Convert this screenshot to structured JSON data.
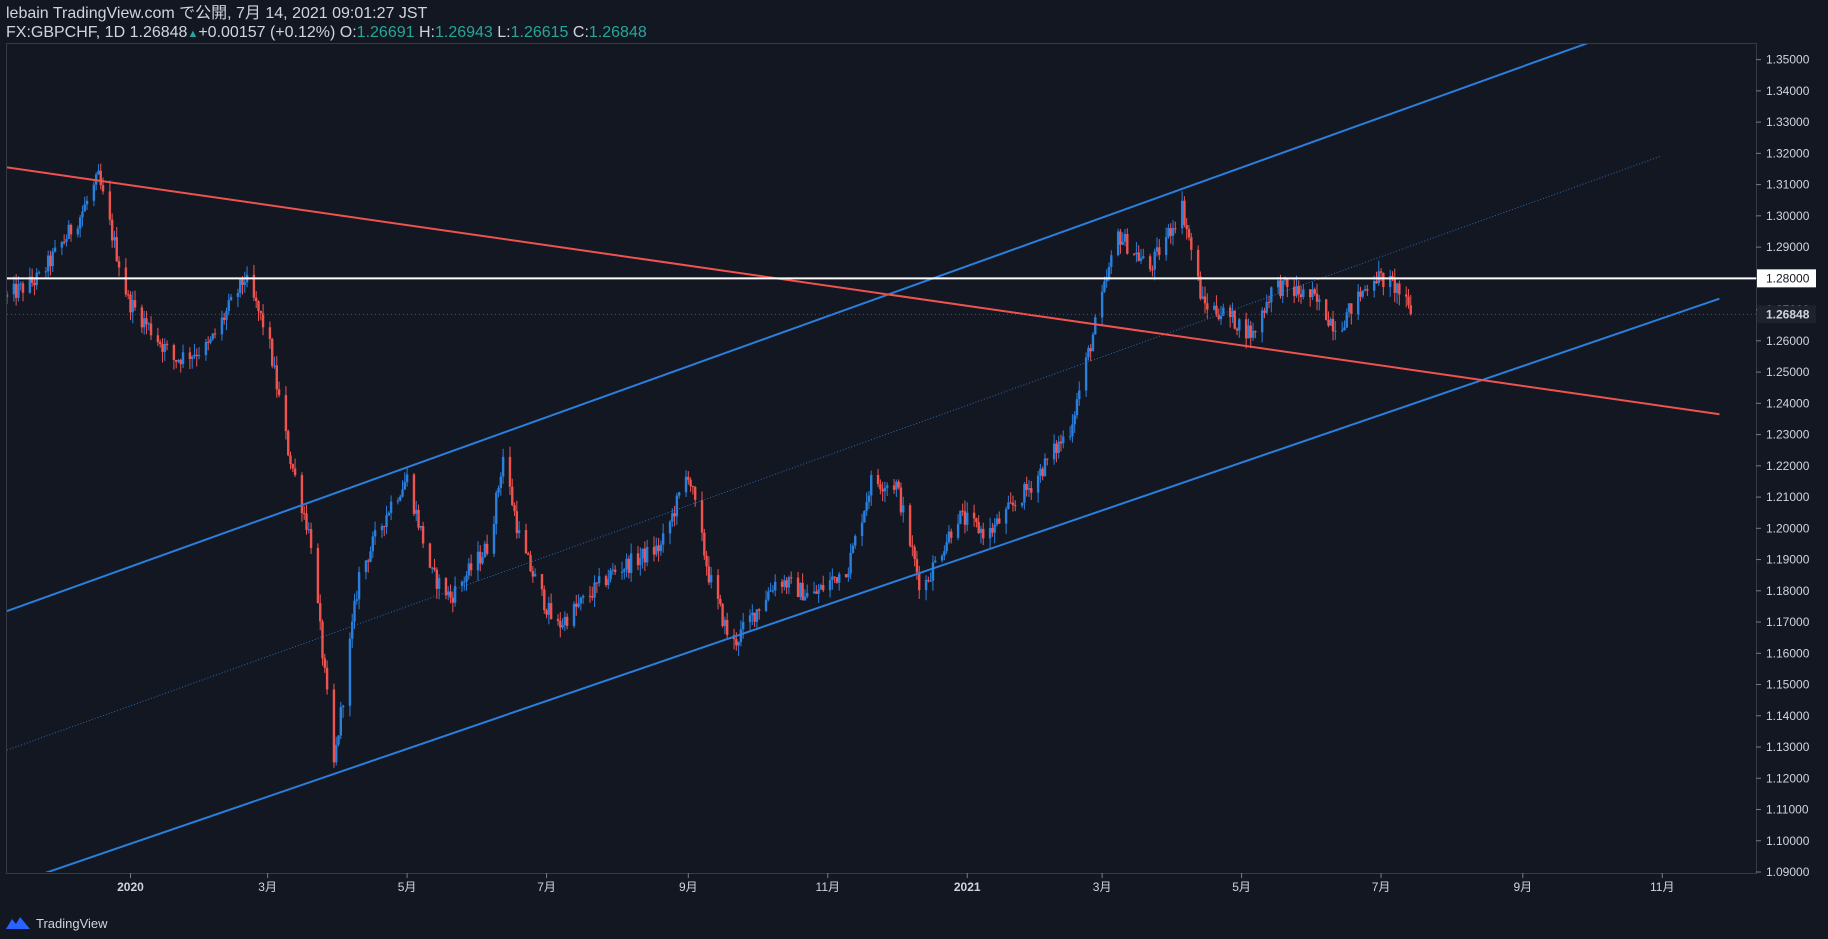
{
  "header": {
    "line1": "lebain TradingView.com で公開, 7月 14, 2021 09:01:27 JST",
    "symbol": "FX:GBPCHF, 1D",
    "last": "1.26848",
    "change": "+0.00157 (+0.12%)",
    "o_label": "O:",
    "o_value": "1.26691",
    "h_label": "H:",
    "h_value": "1.26943",
    "l_label": "L:",
    "l_value": "1.26615",
    "c_label": "C:",
    "c_value": "1.26848"
  },
  "footer": {
    "brand": "TradingView"
  },
  "colors": {
    "background": "#131722",
    "up": "#2a7fdc",
    "down": "#ef5350",
    "channel": "#2962ff",
    "downtrend": "#ef5350",
    "hline": "#ffffff",
    "last_price": "#1e222d"
  },
  "chart_data": {
    "type": "candlestick",
    "symbol": "FX:GBPCHF",
    "interval": "1D",
    "ylim": [
      1.09,
      1.355
    ],
    "y_ticks": [
      "1.09000",
      "1.10000",
      "1.11000",
      "1.12000",
      "1.13000",
      "1.14000",
      "1.15000",
      "1.16000",
      "1.17000",
      "1.18000",
      "1.19000",
      "1.20000",
      "1.21000",
      "1.22000",
      "1.23000",
      "1.24000",
      "1.25000",
      "1.26000",
      "1.27000",
      "1.28000",
      "1.29000",
      "1.30000",
      "1.31000",
      "1.32000",
      "1.33000",
      "1.34000",
      "1.35000"
    ],
    "x_ticks": [
      {
        "label": "2020",
        "date": "2020-01-01",
        "bold": true
      },
      {
        "label": "3月",
        "date": "2020-03-01"
      },
      {
        "label": "5月",
        "date": "2020-05-01"
      },
      {
        "label": "7月",
        "date": "2020-07-01"
      },
      {
        "label": "9月",
        "date": "2020-09-01"
      },
      {
        "label": "11月",
        "date": "2020-11-01"
      },
      {
        "label": "2021",
        "date": "2021-01-01",
        "bold": true
      },
      {
        "label": "3月",
        "date": "2021-03-01"
      },
      {
        "label": "5月",
        "date": "2021-05-01"
      },
      {
        "label": "7月",
        "date": "2021-07-01"
      },
      {
        "label": "9月",
        "date": "2021-09-01"
      },
      {
        "label": "11月",
        "date": "2021-11-01"
      }
    ],
    "xlim": [
      "2019-11-08",
      "2021-12-12"
    ],
    "key_points": [
      {
        "date": "2019-11-08",
        "price": 1.274
      },
      {
        "date": "2019-11-22",
        "price": 1.28
      },
      {
        "date": "2019-12-10",
        "price": 1.3
      },
      {
        "date": "2019-12-18",
        "price": 1.312
      },
      {
        "date": "2019-12-31",
        "price": 1.273
      },
      {
        "date": "2020-01-20",
        "price": 1.254
      },
      {
        "date": "2020-02-04",
        "price": 1.258
      },
      {
        "date": "2020-02-20",
        "price": 1.28
      },
      {
        "date": "2020-03-01",
        "price": 1.262
      },
      {
        "date": "2020-03-10",
        "price": 1.225
      },
      {
        "date": "2020-03-20",
        "price": 1.196
      },
      {
        "date": "2020-03-30",
        "price": 1.124
      },
      {
        "date": "2020-04-10",
        "price": 1.185
      },
      {
        "date": "2020-04-24",
        "price": 1.208
      },
      {
        "date": "2020-05-01",
        "price": 1.216
      },
      {
        "date": "2020-05-12",
        "price": 1.185
      },
      {
        "date": "2020-05-20",
        "price": 1.178
      },
      {
        "date": "2020-06-06",
        "price": 1.195
      },
      {
        "date": "2020-06-12",
        "price": 1.223
      },
      {
        "date": "2020-06-20",
        "price": 1.194
      },
      {
        "date": "2020-07-05",
        "price": 1.168
      },
      {
        "date": "2020-07-30",
        "price": 1.186
      },
      {
        "date": "2020-08-20",
        "price": 1.194
      },
      {
        "date": "2020-09-01",
        "price": 1.218
      },
      {
        "date": "2020-09-10",
        "price": 1.185
      },
      {
        "date": "2020-09-20",
        "price": 1.162
      },
      {
        "date": "2020-10-10",
        "price": 1.184
      },
      {
        "date": "2020-10-25",
        "price": 1.178
      },
      {
        "date": "2020-11-10",
        "price": 1.188
      },
      {
        "date": "2020-11-20",
        "price": 1.215
      },
      {
        "date": "2020-12-01",
        "price": 1.214
      },
      {
        "date": "2020-12-12",
        "price": 1.18
      },
      {
        "date": "2020-12-28",
        "price": 1.204
      },
      {
        "date": "2021-01-10",
        "price": 1.198
      },
      {
        "date": "2021-01-28",
        "price": 1.213
      },
      {
        "date": "2021-02-15",
        "price": 1.232
      },
      {
        "date": "2021-02-25",
        "price": 1.262
      },
      {
        "date": "2021-03-08",
        "price": 1.294
      },
      {
        "date": "2021-03-22",
        "price": 1.283
      },
      {
        "date": "2021-04-05",
        "price": 1.303
      },
      {
        "date": "2021-04-14",
        "price": 1.272
      },
      {
        "date": "2021-04-25",
        "price": 1.268
      },
      {
        "date": "2021-05-06",
        "price": 1.262
      },
      {
        "date": "2021-05-15",
        "price": 1.278
      },
      {
        "date": "2021-06-01",
        "price": 1.274
      },
      {
        "date": "2021-06-12",
        "price": 1.264
      },
      {
        "date": "2021-06-28",
        "price": 1.281
      },
      {
        "date": "2021-07-08",
        "price": 1.277
      },
      {
        "date": "2021-07-14",
        "price": 1.2685
      }
    ],
    "trendlines": [
      {
        "name": "channel-upper",
        "color": "#2a7fdc",
        "p1": {
          "date": "2019-11-08",
          "price": 1.1735
        },
        "p2": {
          "date": "2021-10-04",
          "price": 1.3565
        }
      },
      {
        "name": "channel-middle",
        "color": "#2a7fdc",
        "dotted": true,
        "p1": {
          "date": "2019-11-08",
          "price": 1.129
        },
        "p2": {
          "date": "2021-10-31",
          "price": 1.319
        }
      },
      {
        "name": "channel-lower",
        "color": "#2a7fdc",
        "p1": {
          "date": "2019-11-24",
          "price": 1.0895
        },
        "p2": {
          "date": "2021-11-26",
          "price": 1.2735
        }
      },
      {
        "name": "downtrend",
        "color": "#ef5350",
        "p1": {
          "date": "2019-11-08",
          "price": 1.3155
        },
        "p2": {
          "date": "2021-11-26",
          "price": 1.2365
        }
      }
    ],
    "horizontal_line": {
      "price": 1.28,
      "label": "1.28000"
    },
    "last_price": {
      "price": 1.26848,
      "label": "1.26848"
    }
  }
}
